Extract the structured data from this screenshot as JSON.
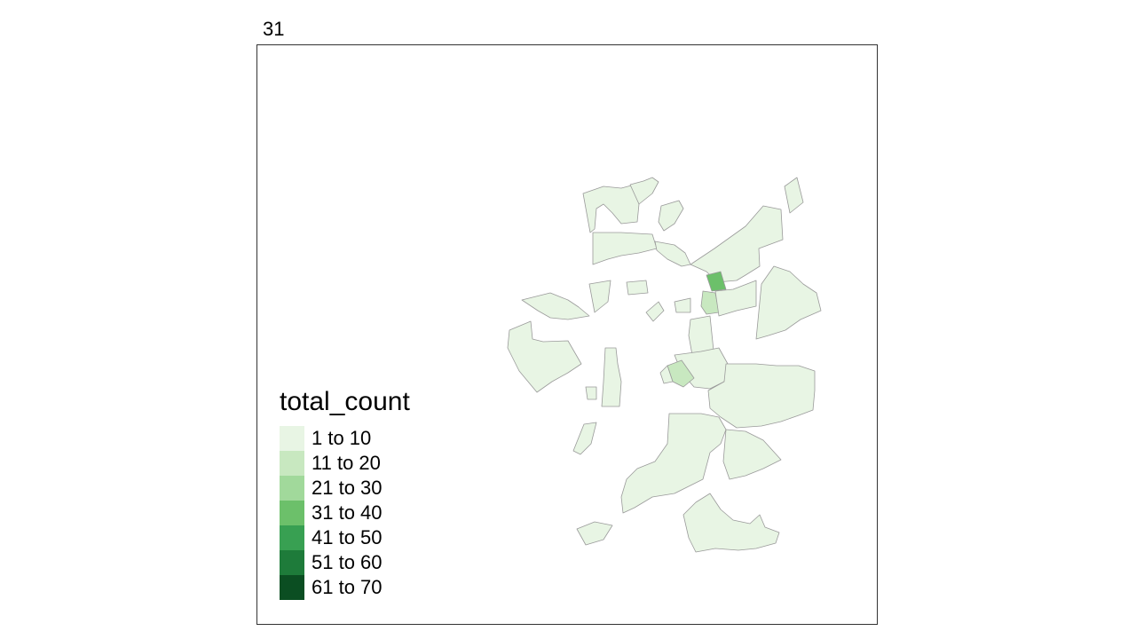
{
  "panel_label": "31",
  "legend": {
    "title": "total_count",
    "items": [
      {
        "label": "1 to 10",
        "color": "#e8f5e4"
      },
      {
        "label": "11 to 20",
        "color": "#c8e8c0"
      },
      {
        "label": "21 to 30",
        "color": "#a1d99b"
      },
      {
        "label": "31 to 40",
        "color": "#6cc06a"
      },
      {
        "label": "41 to 50",
        "color": "#38a052"
      },
      {
        "label": "51 to 60",
        "color": "#1e7b3a"
      },
      {
        "label": "61 to 70",
        "color": "#0b4e22"
      }
    ]
  }
}
